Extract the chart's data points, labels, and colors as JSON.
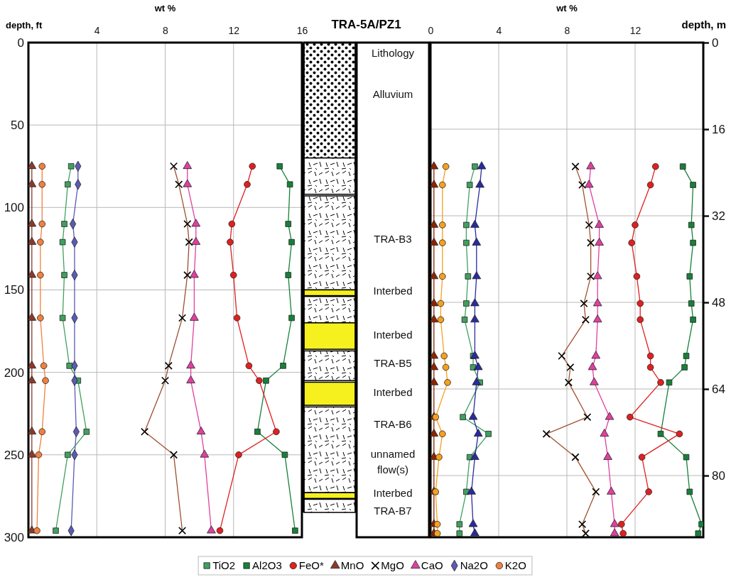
{
  "chart_data": [
    {
      "type": "line",
      "xlabel": "wt %",
      "ylabel": "depth, ft",
      "xlim": [
        0,
        16
      ],
      "xticks": [
        4,
        8,
        12,
        16
      ],
      "ylim": [
        300,
        0
      ],
      "yticks": [
        0,
        50,
        100,
        150,
        200,
        250,
        300
      ],
      "grid": true,
      "legend": "bottom",
      "series": [
        {
          "name": "TiO2",
          "color": "#40a060",
          "marker": "square",
          "values": [
            75,
            86,
            110,
            121,
            141,
            167,
            196,
            205,
            236,
            250,
            296
          ],
          "x": [
            2.5,
            2.3,
            2.1,
            2.0,
            2.1,
            2.0,
            2.4,
            2.9,
            3.4,
            2.3,
            1.6
          ]
        },
        {
          "name": "Al2O3",
          "color": "#17803a",
          "marker": "square",
          "values": [
            75,
            86,
            110,
            121,
            141,
            167,
            196,
            205,
            236,
            250,
            296
          ],
          "x": [
            14.7,
            15.3,
            15.2,
            15.4,
            15.2,
            15.4,
            14.9,
            13.9,
            13.4,
            15.0,
            15.6
          ]
        },
        {
          "name": "FeO*",
          "color": "#e02020",
          "marker": "circle",
          "values": [
            75,
            86,
            110,
            121,
            141,
            167,
            196,
            205,
            236,
            250,
            296
          ],
          "x": [
            13.1,
            12.8,
            11.9,
            11.8,
            12.0,
            12.2,
            12.9,
            13.5,
            14.5,
            12.3,
            11.2
          ]
        },
        {
          "name": "MnO",
          "color": "#8b3a2a",
          "marker": "triangle",
          "values": [
            75,
            86,
            110,
            121,
            141,
            167,
            196,
            205,
            236,
            250,
            296
          ],
          "x": [
            0.2,
            0.2,
            0.2,
            0.2,
            0.2,
            0.2,
            0.2,
            0.2,
            0.2,
            0.2,
            0.2
          ]
        },
        {
          "name": "MgO",
          "color": "#9a5030",
          "marker": "cross",
          "values": [
            75,
            86,
            110,
            121,
            141,
            167,
            196,
            205,
            236,
            250,
            296
          ],
          "x": [
            8.5,
            8.8,
            9.3,
            9.4,
            9.3,
            9.0,
            8.2,
            8.0,
            6.8,
            8.5,
            9.0
          ]
        },
        {
          "name": "CaO",
          "color": "#e040a0",
          "marker": "triangle",
          "values": [
            75,
            86,
            110,
            121,
            141,
            167,
            196,
            205,
            236,
            250,
            296
          ],
          "x": [
            9.3,
            9.3,
            9.8,
            9.8,
            9.7,
            9.7,
            9.5,
            9.5,
            10.1,
            10.3,
            10.7
          ]
        },
        {
          "name": "Na2O",
          "color": "#5b5bb5",
          "marker": "diamond",
          "values": [
            75,
            86,
            110,
            121,
            141,
            167,
            196,
            205,
            236,
            250,
            296
          ],
          "x": [
            2.9,
            2.9,
            2.6,
            2.7,
            2.7,
            2.7,
            2.7,
            2.7,
            2.8,
            2.7,
            2.5
          ]
        },
        {
          "name": "K2O",
          "color": "#f08040",
          "marker": "circle",
          "values": [
            75,
            86,
            110,
            121,
            141,
            167,
            196,
            205,
            236,
            250,
            296
          ],
          "x": [
            0.8,
            0.8,
            0.8,
            0.7,
            0.7,
            0.7,
            0.9,
            1.0,
            0.8,
            0.6,
            0.5
          ]
        }
      ]
    },
    {
      "type": "other",
      "title": "TRA-5A/PZ1",
      "annotations": [
        "Lithology",
        "Alluvium",
        "TRA-B3",
        "Interbed",
        "Interbed",
        "TRA-B5",
        "Interbed",
        "TRA-B6",
        "unnamed flow(s)",
        "Interbed",
        "TRA-B7"
      ]
    },
    {
      "type": "line",
      "xlabel": "wt %",
      "y2label": "depth, m",
      "xlim": [
        0,
        16
      ],
      "xticks": [
        0,
        4,
        8,
        12
      ],
      "y2lim": [
        91.4,
        0
      ],
      "y2ticks": [
        0,
        16,
        32,
        48,
        64,
        80
      ],
      "grid": true,
      "series": [
        {
          "color": "#40a060",
          "marker": "square",
          "axis": "y2",
          "values": [
            22.9,
            26.3,
            33.7,
            37.0,
            43.2,
            48.2,
            51.2,
            57.9,
            60.0,
            62.8,
            69.2,
            72.3,
            76.6,
            83.0,
            89.0,
            90.7
          ],
          "x": [
            2.6,
            2.3,
            2.1,
            2.1,
            2.2,
            2.1,
            2.0,
            2.5,
            2.5,
            2.9,
            1.9,
            3.4,
            2.3,
            2.1,
            1.7,
            1.7
          ]
        },
        {
          "color": "#17803a",
          "marker": "square",
          "axis": "y2",
          "values": [
            22.9,
            26.3,
            33.7,
            37.0,
            43.2,
            48.2,
            51.2,
            57.9,
            60.0,
            62.8,
            72.3,
            76.6,
            83.0,
            89.0,
            90.7
          ],
          "x": [
            14.8,
            15.4,
            15.3,
            15.4,
            15.2,
            15.3,
            15.4,
            15.0,
            14.9,
            14.0,
            13.5,
            15.0,
            15.2,
            15.9,
            15.7
          ]
        },
        {
          "color": "#e02020",
          "marker": "circle",
          "axis": "y2",
          "values": [
            22.9,
            26.3,
            33.7,
            37.0,
            43.2,
            48.2,
            51.2,
            57.9,
            60.0,
            62.8,
            69.2,
            72.3,
            76.6,
            83.0,
            89.0,
            90.7
          ],
          "x": [
            13.2,
            12.9,
            12.0,
            11.8,
            12.1,
            12.3,
            12.3,
            12.9,
            12.9,
            13.5,
            11.7,
            14.6,
            12.4,
            12.8,
            11.2,
            11.3
          ]
        },
        {
          "color": "#8b2500",
          "marker": "triangle",
          "axis": "y2",
          "values": [
            22.9,
            26.3,
            33.7,
            37.0,
            43.2,
            48.2,
            51.2,
            57.9,
            60.0,
            62.8,
            69.2,
            72.3,
            76.6,
            83.0,
            89.0,
            90.7
          ],
          "x": [
            0.2,
            0.2,
            0.2,
            0.2,
            0.2,
            0.2,
            0.2,
            0.2,
            0.2,
            0.2,
            0.2,
            0.2,
            0.2,
            0.2,
            0.2,
            0.2
          ]
        },
        {
          "color": "#a0522d",
          "marker": "cross",
          "axis": "y2",
          "values": [
            22.9,
            26.3,
            33.7,
            37.0,
            43.2,
            48.2,
            51.2,
            57.9,
            60.0,
            62.8,
            69.2,
            72.3,
            76.6,
            83.0,
            89.0,
            90.7
          ],
          "x": [
            8.5,
            8.9,
            9.3,
            9.4,
            9.4,
            9.0,
            9.1,
            7.7,
            8.2,
            8.1,
            9.2,
            6.8,
            8.5,
            9.7,
            8.9,
            9.1
          ]
        },
        {
          "color": "#e040a0",
          "marker": "triangle",
          "axis": "y2",
          "values": [
            22.9,
            26.3,
            33.7,
            37.0,
            43.2,
            48.2,
            51.2,
            57.9,
            60.0,
            62.8,
            69.2,
            72.3,
            76.6,
            83.0,
            89.0,
            90.7
          ],
          "x": [
            9.4,
            9.3,
            9.9,
            9.9,
            9.8,
            9.8,
            9.8,
            9.7,
            9.5,
            9.6,
            10.5,
            10.2,
            10.4,
            10.6,
            10.8,
            10.8
          ]
        },
        {
          "color": "#2a2aa0",
          "marker": "triangle",
          "axis": "y2",
          "values": [
            22.9,
            26.3,
            33.7,
            37.0,
            43.2,
            48.2,
            51.2,
            57.9,
            60.0,
            62.8,
            69.2,
            72.3,
            76.6,
            83.0,
            89.0,
            90.7
          ],
          "x": [
            3.0,
            2.9,
            2.6,
            2.7,
            2.7,
            2.6,
            2.6,
            2.6,
            2.8,
            2.7,
            2.5,
            2.8,
            2.6,
            2.4,
            2.5,
            2.6
          ]
        },
        {
          "color": "#f5a020",
          "marker": "circle",
          "axis": "y2",
          "values": [
            22.9,
            26.3,
            33.7,
            37.0,
            43.2,
            48.2,
            51.2,
            57.9,
            60.0,
            62.8,
            69.2,
            72.3,
            76.6,
            83.0,
            89.0,
            90.7
          ],
          "x": [
            0.9,
            0.7,
            0.7,
            0.7,
            0.7,
            0.6,
            0.6,
            0.8,
            0.9,
            1.0,
            0.3,
            0.7,
            0.5,
            0.3,
            0.4,
            0.4
          ]
        }
      ]
    }
  ]
}
